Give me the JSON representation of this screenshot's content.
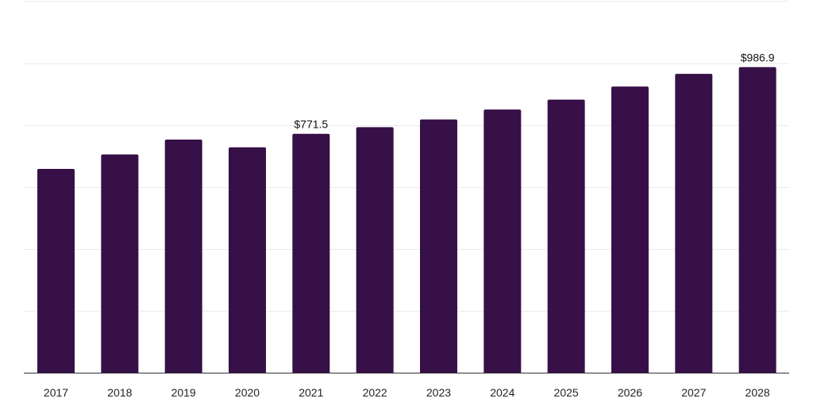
{
  "chart_data": {
    "type": "bar",
    "title": "",
    "xlabel": "",
    "ylabel": "",
    "categories": [
      "2017",
      "2018",
      "2019",
      "2020",
      "2021",
      "2022",
      "2023",
      "2024",
      "2025",
      "2026",
      "2027",
      "2028"
    ],
    "values": [
      658,
      705,
      753,
      728,
      771.5,
      793,
      818,
      850,
      882,
      924,
      965,
      986.9
    ],
    "data_labels": [
      {
        "index": 4,
        "text": "$771.5"
      },
      {
        "index": 11,
        "text": "$986.9"
      }
    ],
    "ylim": [
      0,
      1200
    ],
    "y_gridlines": [
      200,
      400,
      600,
      800,
      1000,
      1200
    ],
    "y_tick_labels_visible": false,
    "grid": true,
    "legend": "none",
    "colors": {
      "bar": "#371047",
      "grid": "#ebebeb",
      "axis": "#333333"
    }
  }
}
